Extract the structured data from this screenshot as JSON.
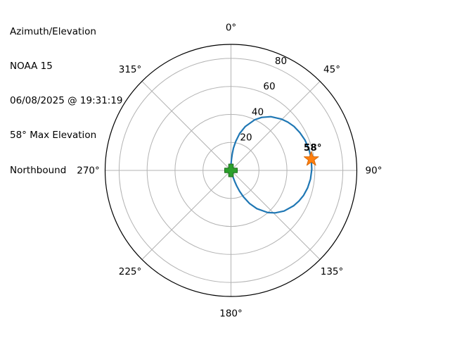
{
  "header": {
    "title": "Azimuth/Elevation",
    "satellite": "NOAA 15",
    "datetime": "06/08/2025 @ 19:31:19",
    "max_elevation_text": "58° Max Elevation",
    "direction": "Northbound"
  },
  "chart_data": {
    "type": "line",
    "projection": "polar",
    "orientation": "0° at top (north), clockwise azimuth",
    "radial_axis": "elevation, 0° at center to 90° at outer edge",
    "azimuth_ticks_deg": [
      0,
      45,
      90,
      135,
      180,
      225,
      270,
      315
    ],
    "azimuth_tick_labels": [
      "0°",
      "45°",
      "90°",
      "135°",
      "180°",
      "225°",
      "270°",
      "315°"
    ],
    "elevation_rings": [
      20,
      40,
      60,
      80
    ],
    "elevation_ring_labels": [
      "20",
      "40",
      "60",
      "80"
    ],
    "elevation_range": [
      0,
      90
    ],
    "radial_label_azimuth_deg": 24.5,
    "grid": true,
    "track_azel": [
      [
        164.4,
        0
      ],
      [
        163.6,
        2.3
      ],
      [
        162.6,
        5.1
      ],
      [
        161.3,
        8.2
      ],
      [
        159.7,
        11.8
      ],
      [
        157.6,
        16.0
      ],
      [
        154.7,
        20.9
      ],
      [
        150.7,
        27.1
      ],
      [
        145.9,
        33.0
      ],
      [
        138.8,
        40.0
      ],
      [
        133.8,
        43.8
      ],
      [
        127.4,
        47.8
      ],
      [
        119.3,
        51.5
      ],
      [
        114.3,
        53.3
      ],
      [
        108.9,
        54.9
      ],
      [
        102.8,
        56.2
      ],
      [
        96.2,
        57.2
      ],
      [
        89.2,
        57.8
      ],
      [
        82.0,
        58.0
      ],
      [
        74.8,
        57.8
      ],
      [
        67.8,
        57.2
      ],
      [
        61.2,
        56.2
      ],
      [
        55.1,
        54.9
      ],
      [
        49.7,
        53.3
      ],
      [
        44.7,
        51.5
      ],
      [
        36.6,
        47.8
      ],
      [
        30.2,
        43.8
      ],
      [
        25.2,
        40.0
      ],
      [
        18.1,
        33.0
      ],
      [
        13.3,
        27.1
      ],
      [
        9.3,
        20.9
      ],
      [
        6.4,
        16.0
      ],
      [
        4.3,
        11.8
      ],
      [
        2.7,
        8.2
      ],
      [
        1.4,
        5.1
      ],
      [
        0.4,
        2.3
      ],
      [
        359.6,
        0
      ]
    ],
    "markers": {
      "start": {
        "az": 164.4,
        "el": 0,
        "shape": "plus"
      },
      "max": {
        "az": 82.0,
        "el": 58,
        "shape": "star",
        "label": "58°"
      }
    },
    "colors": {
      "track": "#1f77b4",
      "grid": "#b3b3b3",
      "outline": "#000000",
      "text": "#000000",
      "start_marker": "#2ca02c",
      "start_marker_edge": "#1c6e1c",
      "max_marker": "#ff7f0e",
      "max_marker_edge": "#d96a0a",
      "background": "#ffffff"
    }
  }
}
